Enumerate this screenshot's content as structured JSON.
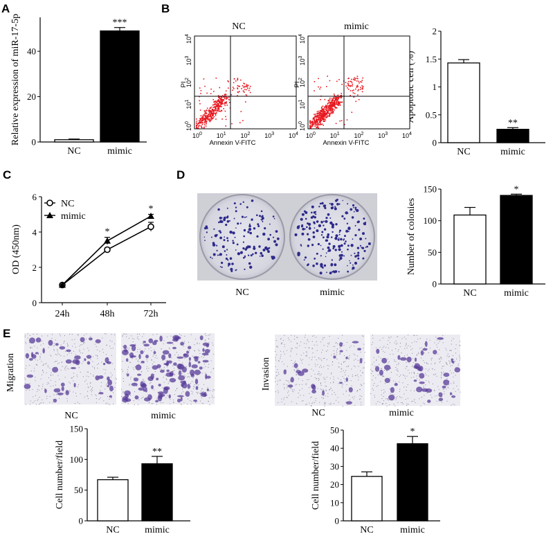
{
  "panels": {
    "A": {
      "letter": "A"
    },
    "B": {
      "letter": "B",
      "flow_titles": [
        "NC",
        "mimic"
      ],
      "flow_xlabel": "Annexin V-FITC",
      "flow_ylabel": "PI"
    },
    "C": {
      "letter": "C"
    },
    "D": {
      "letter": "D",
      "image_labels": [
        "NC",
        "mimic"
      ]
    },
    "E": {
      "letter": "E",
      "migration_label": "Migration",
      "invasion_label": "Invasion",
      "image_labels": [
        "NC",
        "mimic"
      ]
    }
  },
  "colors": {
    "nc_fill": "#ffffff",
    "mimic_fill": "#000000",
    "flow_dots": "#e8141c",
    "stain": "#5a3e9a"
  },
  "chart_data": [
    {
      "id": "A",
      "type": "bar",
      "categories": [
        "NC",
        "mimic"
      ],
      "values": [
        1,
        49
      ],
      "errors": [
        0.3,
        1.5
      ],
      "significance": [
        "",
        "***"
      ],
      "xlabel": "",
      "ylabel": "Relative expression of miR-17-5p",
      "ylim": [
        0,
        55
      ],
      "yticks": [
        0,
        20,
        40
      ]
    },
    {
      "id": "B",
      "type": "bar",
      "categories": [
        "NC",
        "mimic"
      ],
      "values": [
        1.43,
        0.24
      ],
      "errors": [
        0.06,
        0.03
      ],
      "significance": [
        "",
        "**"
      ],
      "xlabel": "",
      "ylabel": "Apoptotic cell (%)",
      "ylim": [
        0,
        2.0
      ],
      "yticks": [
        0,
        0.5,
        1.0,
        1.5,
        2.0
      ]
    },
    {
      "id": "C",
      "type": "line",
      "x": [
        "24h",
        "48h",
        "72h"
      ],
      "series": [
        {
          "name": "NC",
          "marker": "open-circle",
          "values": [
            1.0,
            3.0,
            4.3
          ],
          "errors": [
            0.05,
            0.1,
            0.25
          ]
        },
        {
          "name": "mimic",
          "marker": "filled-triangle",
          "values": [
            1.0,
            3.5,
            4.9
          ],
          "errors": [
            0.05,
            0.2,
            0.1
          ]
        }
      ],
      "significance": [
        "",
        "*",
        "*"
      ],
      "xlabel": "",
      "ylabel": "OD (450nm)",
      "ylim": [
        0,
        6
      ],
      "yticks": [
        0,
        2,
        4,
        6
      ],
      "legend": "top-left"
    },
    {
      "id": "D",
      "type": "bar",
      "categories": [
        "NC",
        "mimic"
      ],
      "values": [
        109,
        140
      ],
      "errors": [
        12,
        2
      ],
      "significance": [
        "",
        "*"
      ],
      "xlabel": "",
      "ylabel": "Number of colonies",
      "ylim": [
        0,
        150
      ],
      "yticks": [
        0,
        50,
        100,
        150
      ]
    },
    {
      "id": "E1",
      "type": "bar",
      "categories": [
        "NC",
        "mimic"
      ],
      "values": [
        67,
        93
      ],
      "errors": [
        4,
        12
      ],
      "significance": [
        "",
        "**"
      ],
      "xlabel": "",
      "ylabel": "Cell number/field",
      "ylim": [
        0,
        150
      ],
      "yticks": [
        0,
        50,
        100,
        150
      ]
    },
    {
      "id": "E2",
      "type": "bar",
      "categories": [
        "NC",
        "mimic"
      ],
      "values": [
        24.5,
        42.5
      ],
      "errors": [
        2.5,
        4
      ],
      "significance": [
        "",
        "*"
      ],
      "xlabel": "",
      "ylabel": "Cell number/field",
      "ylim": [
        0,
        50
      ],
      "yticks": [
        0,
        10,
        20,
        30,
        40,
        50
      ]
    }
  ]
}
